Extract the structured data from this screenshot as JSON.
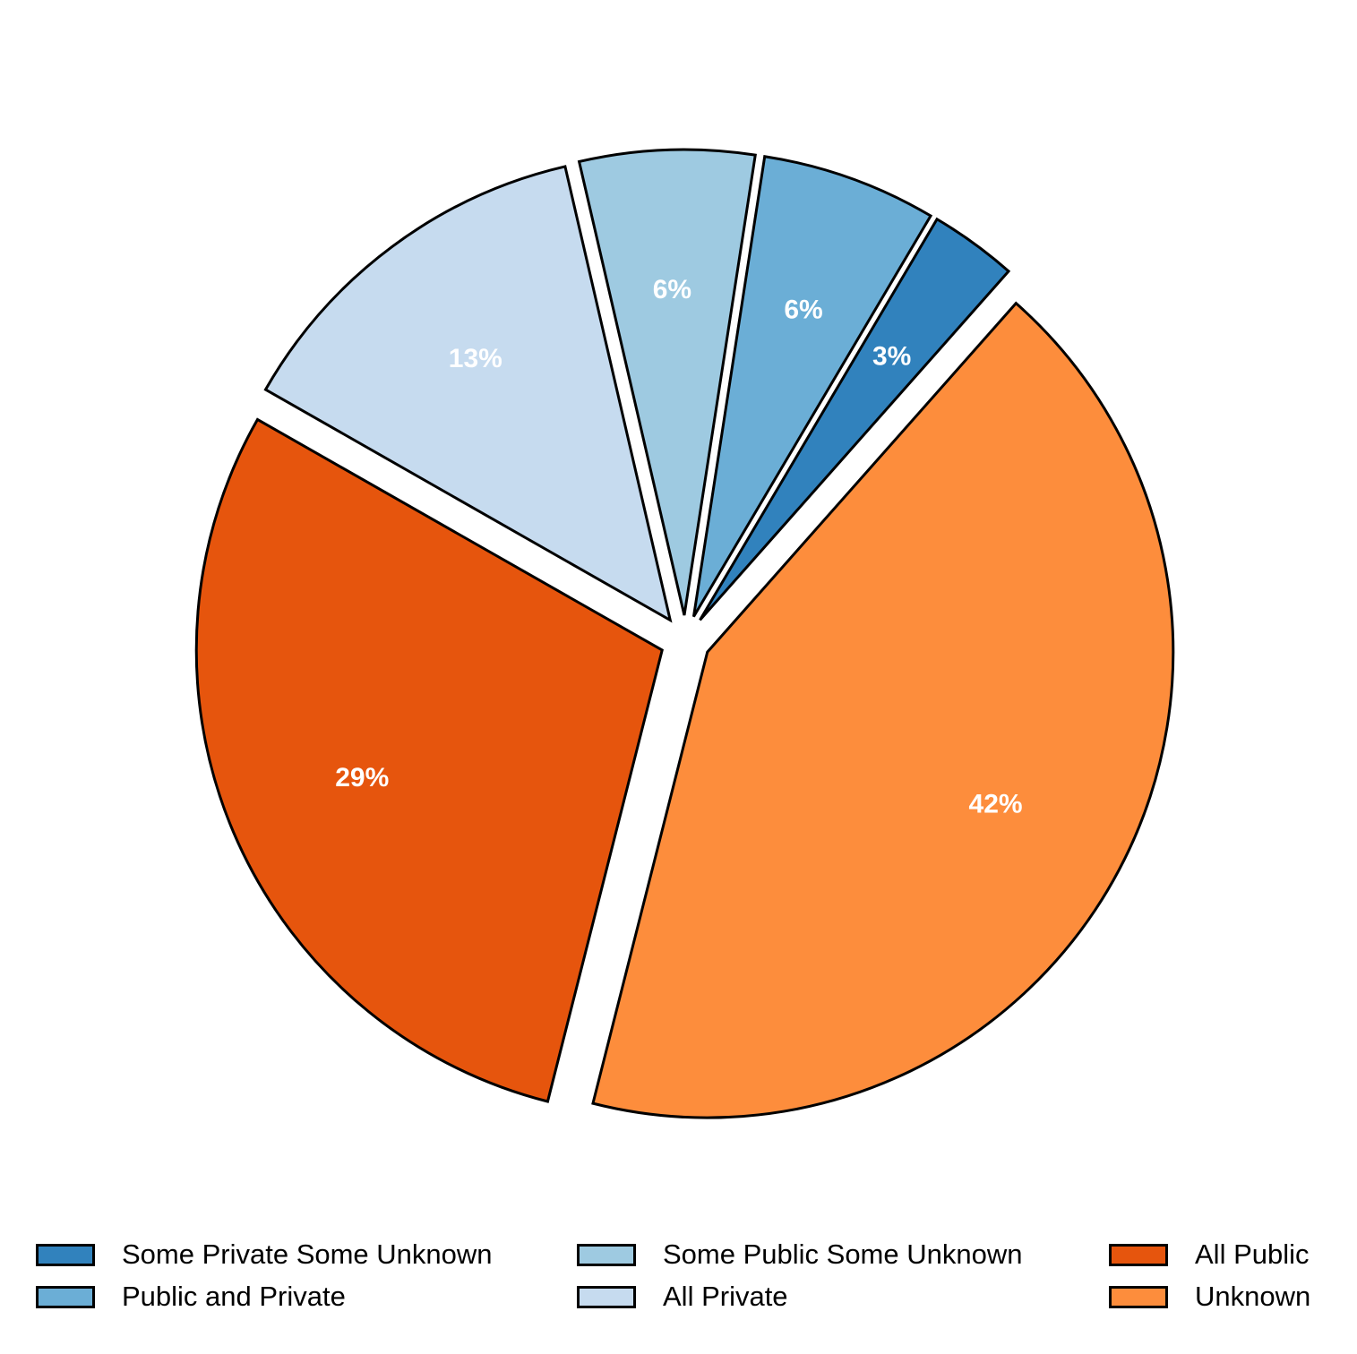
{
  "chart_data": {
    "type": "pie",
    "title": "",
    "slices": [
      {
        "label": "Some Private Some Unknown",
        "value": 3,
        "value_label": "3%",
        "color": "#3182bd"
      },
      {
        "label": "Public and Private",
        "value": 6,
        "value_label": "6%",
        "color": "#6baed6"
      },
      {
        "label": "Some Public Some Unknown",
        "value": 6,
        "value_label": "6%",
        "color": "#9ecae1"
      },
      {
        "label": "All Private",
        "value": 13,
        "value_label": "13%",
        "color": "#c6dbef"
      },
      {
        "label": "All Public",
        "value": 29,
        "value_label": "29%",
        "color": "#e6550d"
      },
      {
        "label": "Unknown",
        "value": 42,
        "value_label": "42%",
        "color": "#fd8d3c"
      }
    ],
    "exploded": true,
    "label_color": "#ffffff",
    "edge_color": "#000000",
    "legend": {
      "position": "bottom",
      "columns": 3,
      "items": [
        "Some Private Some Unknown",
        "Public and Private",
        "Some Public Some Unknown",
        "All Private",
        "All Public",
        "Unknown"
      ]
    }
  }
}
